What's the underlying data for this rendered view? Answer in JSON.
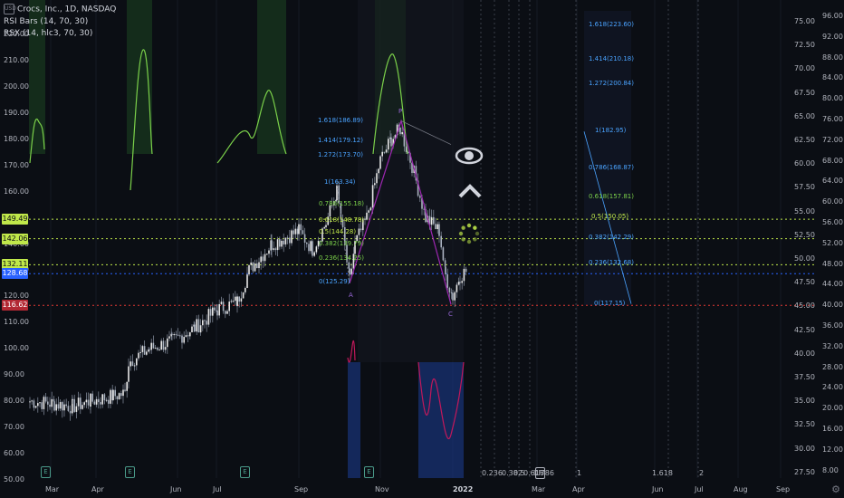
{
  "chart": {
    "title": "Crocs, Inc., 1D, NASDAQ",
    "indicators": [
      "RSI Bars (14, 70, 30)",
      "RSX (14, hlc3, 70, 30)"
    ],
    "currency_icon": "USD"
  },
  "left_axis": {
    "ticks": [
      "220.00",
      "210.00",
      "200.00",
      "190.00",
      "180.00",
      "170.00",
      "160.00",
      "150.00",
      "140.00",
      "130.00",
      "120.00",
      "110.00",
      "100.00",
      "90.00",
      "80.00",
      "70.00",
      "60.00",
      "50.00"
    ]
  },
  "price_tags": [
    {
      "label": "149.49",
      "bg": "#c0e84a",
      "fg": "#0b0e14"
    },
    {
      "label": "142.06",
      "bg": "#c0e84a",
      "fg": "#0b0e14"
    },
    {
      "label": "132.11",
      "bg": "#c0e84a",
      "fg": "#0b0e14"
    },
    {
      "label": "128.68",
      "bg": "#2962ff",
      "fg": "#ffffff"
    },
    {
      "label": "116.62",
      "bg": "#b22833",
      "fg": "#ffffff"
    }
  ],
  "right_axis_1": {
    "ticks": [
      "75.00",
      "72.50",
      "70.00",
      "67.50",
      "65.00",
      "62.50",
      "60.00",
      "57.50",
      "55.00",
      "52.50",
      "50.00",
      "47.50",
      "45.00",
      "42.50",
      "40.00",
      "37.50",
      "35.00",
      "32.50",
      "30.00",
      "27.50"
    ]
  },
  "right_axis_2": {
    "ticks": [
      "96.00",
      "92.00",
      "88.00",
      "84.00",
      "80.00",
      "76.00",
      "72.00",
      "68.00",
      "64.00",
      "60.00",
      "56.00",
      "52.00",
      "48.00",
      "44.00",
      "40.00",
      "36.00",
      "32.00",
      "28.00",
      "24.00",
      "20.00",
      "16.00",
      "12.00",
      "8.00"
    ]
  },
  "x_axis": {
    "labels": [
      "Mar",
      "Apr",
      "Jun",
      "Jul",
      "Sep",
      "Nov",
      "2022",
      "Mar",
      "Apr",
      "Jun",
      "Jul",
      "Aug",
      "Sep"
    ]
  },
  "fib_left": [
    "1.618(186.89)",
    "1.414(179.12)",
    "1.272(173.70)",
    "1(163.34)",
    "0.786(155.18)",
    "0.618(148.78)",
    "0.5(144.28)",
    "0.382(139.79)",
    "0.236(134.25)",
    "0(125.29)"
  ],
  "fib_right": [
    "1.618(223.60)",
    "1.414(210.18)",
    "1.272(200.84)",
    "1(182.95)",
    "0.786(168.87)",
    "0.618(157.81)",
    "0.5(150.05)",
    "0.382(142.29)",
    "0.236(132.68)",
    "0(117.15)"
  ],
  "fib_time": [
    "0.236",
    "0.382",
    "0.5",
    "0.618",
    "0.786",
    "1",
    "1.618",
    "2"
  ],
  "wave_labels": [
    "P",
    "A",
    "C"
  ],
  "earnings_badge": "E",
  "toolbar": {
    "eye": "eye-icon",
    "up": "chevron-up-icon",
    "loading": "loading-icon"
  },
  "colors": {
    "bg": "#0b0e14",
    "green": "#7bd14a",
    "purple": "#9c27b0",
    "blue": "#2962ff",
    "red": "#e53935",
    "lime": "#c0e84a",
    "fibright": "#4aa3ff"
  }
}
